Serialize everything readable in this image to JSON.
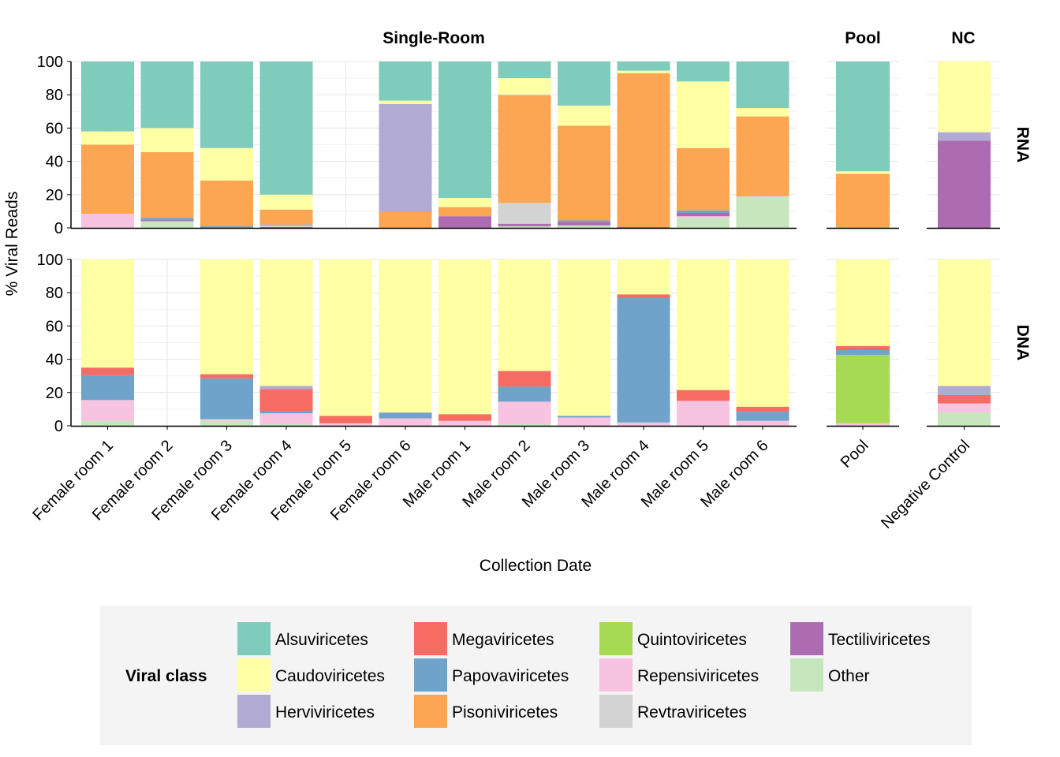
{
  "chart_data": {
    "type": "bar",
    "stacked": true,
    "percent": true,
    "xlabel": "Collection Date",
    "ylabel": "% Viral Reads",
    "ylim": [
      0,
      100
    ],
    "yticks": [
      0,
      20,
      40,
      60,
      80,
      100
    ],
    "grid": true,
    "legend": {
      "title": "Viral class",
      "position": "bottom"
    },
    "column_facets": [
      {
        "label": "Single-Room",
        "categories": [
          "Female room 1",
          "Female room 2",
          "Female room 3",
          "Female room 4",
          "Female room 5",
          "Female room 6",
          "Male room 1",
          "Male room 2",
          "Male room 3",
          "Male room 4",
          "Male room 5",
          "Male room 6"
        ]
      },
      {
        "label": "Pool",
        "categories": [
          "Pool"
        ]
      },
      {
        "label": "NC",
        "categories": [
          "Negative Control"
        ]
      }
    ],
    "row_facets": [
      "RNA",
      "DNA"
    ],
    "classes": [
      {
        "name": "Alsuviricetes",
        "color": "#7fcbbc"
      },
      {
        "name": "Caudoviricetes",
        "color": "#ffffa3"
      },
      {
        "name": "Herviviricetes",
        "color": "#b1abd3"
      },
      {
        "name": "Megaviricetes",
        "color": "#f66b62"
      },
      {
        "name": "Papovaviricetes",
        "color": "#6fa3ca"
      },
      {
        "name": "Pisoniviricetes",
        "color": "#fca552"
      },
      {
        "name": "Quintoviricetes",
        "color": "#a6da55"
      },
      {
        "name": "Repensiviricetes",
        "color": "#f8c3e0"
      },
      {
        "name": "Revtraviricetes",
        "color": "#d3d3d3"
      },
      {
        "name": "Tectiliviricetes",
        "color": "#ad6bb1"
      },
      {
        "name": "Other",
        "color": "#c6e7bd"
      }
    ],
    "stack_order": [
      "Other",
      "Repensiviricetes",
      "Quintoviricetes",
      "Tectiliviricetes",
      "Revtraviricetes",
      "Papovaviricetes",
      "Megaviricetes",
      "Pisoniviricetes",
      "Herviviricetes",
      "Caudoviricetes",
      "Alsuviricetes"
    ],
    "data": {
      "RNA": {
        "Female room 1": {
          "Repensiviricetes": 8.5,
          "Pisoniviricetes": 41.5,
          "Caudoviricetes": 8,
          "Alsuviricetes": 42
        },
        "Female room 2": {
          "Other": 3.5,
          "Repensiviricetes": 0.5,
          "Tectiliviricetes": 0.5,
          "Pisoniviricetes": 39.5,
          "Papovaviricetes": 1.5,
          "Caudoviricetes": 14.5,
          "Alsuviricetes": 40
        },
        "Female room 3": {
          "Pisoniviricetes": 27.5,
          "Papovaviricetes": 1,
          "Caudoviricetes": 19.5,
          "Alsuviricetes": 52
        },
        "Female room 4": {
          "Papovaviricetes": 0.5,
          "Tectiliviricetes": 0.5,
          "Revtraviricetes": 1,
          "Pisoniviricetes": 9,
          "Caudoviricetes": 9,
          "Alsuviricetes": 80
        },
        "Female room 5": {},
        "Female room 6": {
          "Pisoniviricetes": 9.5,
          "Herviviricetes": 65,
          "Caudoviricetes": 2,
          "Alsuviricetes": 23.5
        },
        "Male room 1": {
          "Tectiliviricetes": 7,
          "Pisoniviricetes": 5.5,
          "Caudoviricetes": 5.5,
          "Alsuviricetes": 82
        },
        "Male room 2": {
          "Other": 1,
          "Tectiliviricetes": 1.5,
          "Revtraviricetes": 12.5,
          "Pisoniviricetes": 64.5,
          "Herviviricetes": 0.5,
          "Caudoviricetes": 10,
          "Alsuviricetes": 10
        },
        "Male room 3": {
          "Other": 1.5,
          "Tectiliviricetes": 2,
          "Pisoniviricetes": 57,
          "Papovaviricetes": 1,
          "Caudoviricetes": 12,
          "Alsuviricetes": 26.5
        },
        "Male room 4": {
          "Tectiliviricetes": 0.5,
          "Pisoniviricetes": 92.5,
          "Caudoviricetes": 1.5,
          "Alsuviricetes": 5.5
        },
        "Male room 5": {
          "Other": 6,
          "Repensiviricetes": 1,
          "Tectiliviricetes": 2,
          "Pisoniviricetes": 37.5,
          "Papovaviricetes": 1.5,
          "Caudoviricetes": 40,
          "Alsuviricetes": 12
        },
        "Male room 6": {
          "Other": 18.5,
          "Revtraviricetes": 0.5,
          "Pisoniviricetes": 48,
          "Caudoviricetes": 5,
          "Alsuviricetes": 28
        },
        "Pool": {
          "Quintoviricetes": 0.5,
          "Pisoniviricetes": 32,
          "Caudoviricetes": 1.5,
          "Alsuviricetes": 66
        },
        "Negative Control": {
          "Tectiliviricetes": 52.5,
          "Herviviricetes": 5,
          "Caudoviricetes": 42.5
        }
      },
      "DNA": {
        "Female room 1": {
          "Other": 3,
          "Repensiviricetes": 12.5,
          "Papovaviricetes": 15,
          "Megaviricetes": 4.5,
          "Caudoviricetes": 65
        },
        "Female room 2": {},
        "Female room 3": {
          "Other": 3,
          "Repensiviricetes": 1,
          "Papovaviricetes": 24.5,
          "Megaviricetes": 2.5,
          "Caudoviricetes": 69
        },
        "Female room 4": {
          "Other": 1,
          "Repensiviricetes": 6.5,
          "Papovaviricetes": 1.5,
          "Megaviricetes": 13,
          "Herviviricetes": 2,
          "Caudoviricetes": 76
        },
        "Female room 5": {
          "Repensiviricetes": 1.5,
          "Megaviricetes": 4.5,
          "Caudoviricetes": 94
        },
        "Female room 6": {
          "Repensiviricetes": 4.5,
          "Papovaviricetes": 3.5,
          "Caudoviricetes": 92
        },
        "Male room 1": {
          "Repensiviricetes": 3,
          "Megaviricetes": 4,
          "Caudoviricetes": 93
        },
        "Male room 2": {
          "Other": 1,
          "Repensiviricetes": 13.5,
          "Papovaviricetes": 9,
          "Megaviricetes": 9.5,
          "Caudoviricetes": 67
        },
        "Male room 3": {
          "Repensiviricetes": 5,
          "Papovaviricetes": 1,
          "Caudoviricetes": 94
        },
        "Male room 4": {
          "Repensiviricetes": 2,
          "Papovaviricetes": 75,
          "Megaviricetes": 2,
          "Caudoviricetes": 21
        },
        "Male room 5": {
          "Repensiviricetes": 15,
          "Megaviricetes": 6.5,
          "Caudoviricetes": 78.5
        },
        "Male room 6": {
          "Repensiviricetes": 3,
          "Papovaviricetes": 5.5,
          "Megaviricetes": 3,
          "Caudoviricetes": 88.5
        },
        "Pool": {
          "Repensiviricetes": 1.5,
          "Quintoviricetes": 41,
          "Papovaviricetes": 3,
          "Megaviricetes": 2.5,
          "Caudoviricetes": 52
        },
        "Negative Control": {
          "Other": 8,
          "Repensiviricetes": 5.5,
          "Megaviricetes": 5,
          "Herviviricetes": 5.5,
          "Caudoviricetes": 76
        }
      }
    }
  }
}
